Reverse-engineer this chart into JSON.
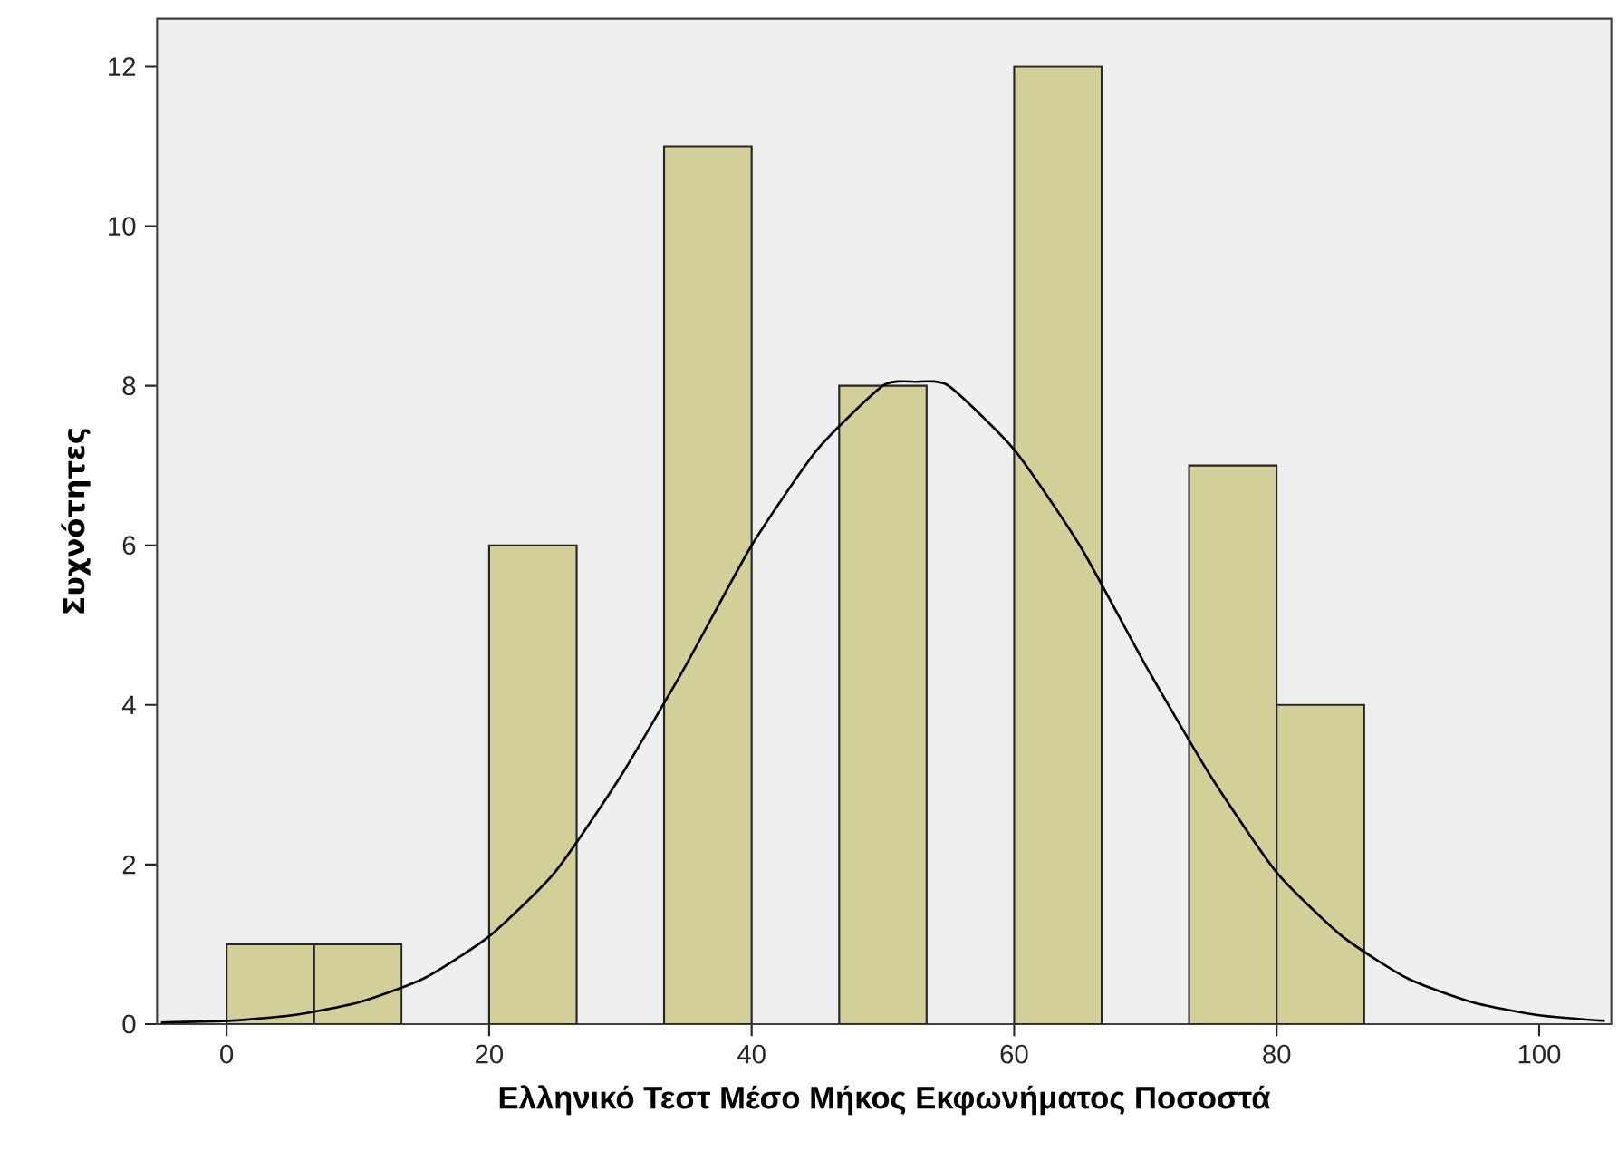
{
  "chart_data": {
    "type": "histogram",
    "xlabel": "Ελληνικό Τεστ Μέσο Μήκος Εκφωνήματος Ποσοστά",
    "ylabel": "Συχνότητες",
    "xlim": [
      -5.3,
      105.5
    ],
    "ylim": [
      0,
      12.6
    ],
    "xticks": [
      0,
      20,
      40,
      60,
      80,
      100
    ],
    "yticks": [
      0,
      2,
      4,
      6,
      8,
      10,
      12
    ],
    "grid": false,
    "series": [
      {
        "color": "#d3cf98",
        "bins": [
          0,
          6.67,
          13.33,
          20,
          26.67,
          33.33,
          40,
          46.67,
          53.33,
          60,
          66.67,
          73.33,
          80,
          86.67
        ],
        "values": [
          1,
          1,
          0,
          6,
          0,
          11,
          0,
          8,
          0,
          12,
          0,
          7,
          4
        ]
      },
      {
        "type": "line",
        "color": "#000000",
        "x": [
          -5,
          0,
          5,
          10,
          15,
          20,
          25,
          30,
          35,
          40,
          45,
          50,
          52.5,
          55,
          60,
          65,
          70,
          75,
          80,
          85,
          90,
          95,
          100,
          105
        ],
        "values": [
          0.02,
          0.04,
          0.11,
          0.27,
          0.57,
          1.1,
          1.9,
          3.1,
          4.5,
          6.0,
          7.2,
          8.0,
          8.05,
          8.0,
          7.2,
          6.0,
          4.5,
          3.1,
          1.9,
          1.1,
          0.57,
          0.27,
          0.11,
          0.04
        ]
      }
    ]
  }
}
